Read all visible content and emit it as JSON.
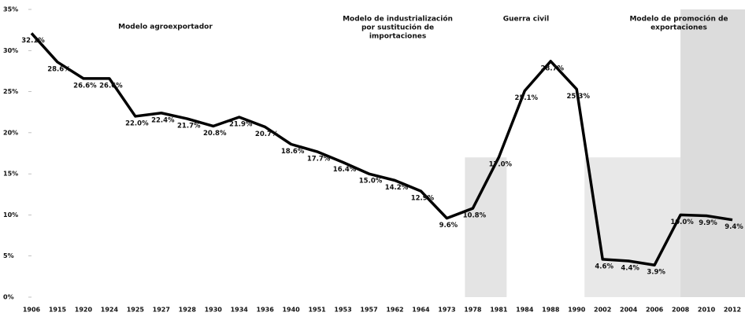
{
  "chart_data": {
    "type": "line",
    "categories": [
      "1906",
      "1915",
      "1920",
      "1924",
      "1925",
      "1927",
      "1928",
      "1930",
      "1934",
      "1936",
      "1940",
      "1951",
      "1953",
      "1957",
      "1962",
      "1964",
      "1973",
      "1978",
      "1981",
      "1984",
      "1988",
      "1990",
      "2002",
      "2004",
      "2006",
      "2008",
      "2010",
      "2012"
    ],
    "series": [
      {
        "color": "#000000",
        "values": [
          32.1,
          28.6,
          26.6,
          26.6,
          22.0,
          22.4,
          21.7,
          20.8,
          21.9,
          20.7,
          18.6,
          17.7,
          16.4,
          15.0,
          14.2,
          12.9,
          9.6,
          10.8,
          17.0,
          25.1,
          28.7,
          25.3,
          4.6,
          4.4,
          3.9,
          10.0,
          9.9,
          9.4
        ],
        "value_labels": [
          "32.1%",
          "28.6%",
          "26.6%",
          "26.6%",
          "22.0%",
          "22.4%",
          "21.7%",
          "20.8%",
          "21.9%",
          "20.7%",
          "18.6%",
          "17.7%",
          "16.4%",
          "15.0%",
          "14.2%",
          "12.9%",
          "9.6%",
          "10.8%",
          "17.0%",
          "25.1%",
          "28.7%",
          "25.3%",
          "4.6%",
          "4.4%",
          "3.9%",
          "10.0%",
          "9.9%",
          "9.4%"
        ]
      }
    ],
    "ylim": [
      0,
      35
    ],
    "yticks": [
      {
        "value": 0,
        "label": "0%"
      },
      {
        "value": 5,
        "label": "5%"
      },
      {
        "value": 10,
        "label": "10%"
      },
      {
        "value": 15,
        "label": "15%"
      },
      {
        "value": 20,
        "label": "20%"
      },
      {
        "value": 25,
        "label": "25%"
      },
      {
        "value": 30,
        "label": "30%"
      },
      {
        "value": 35,
        "label": "35%"
      }
    ],
    "annotations": [
      {
        "lines": [
          "Modelo agroexportador"
        ]
      },
      {
        "lines": [
          "Modelo de industrialización",
          "por sustitución de",
          "importaciones"
        ]
      },
      {
        "lines": [
          "Guerra civil"
        ]
      },
      {
        "lines": [
          "Modelo de promoción de",
          "exportaciones"
        ]
      }
    ]
  }
}
